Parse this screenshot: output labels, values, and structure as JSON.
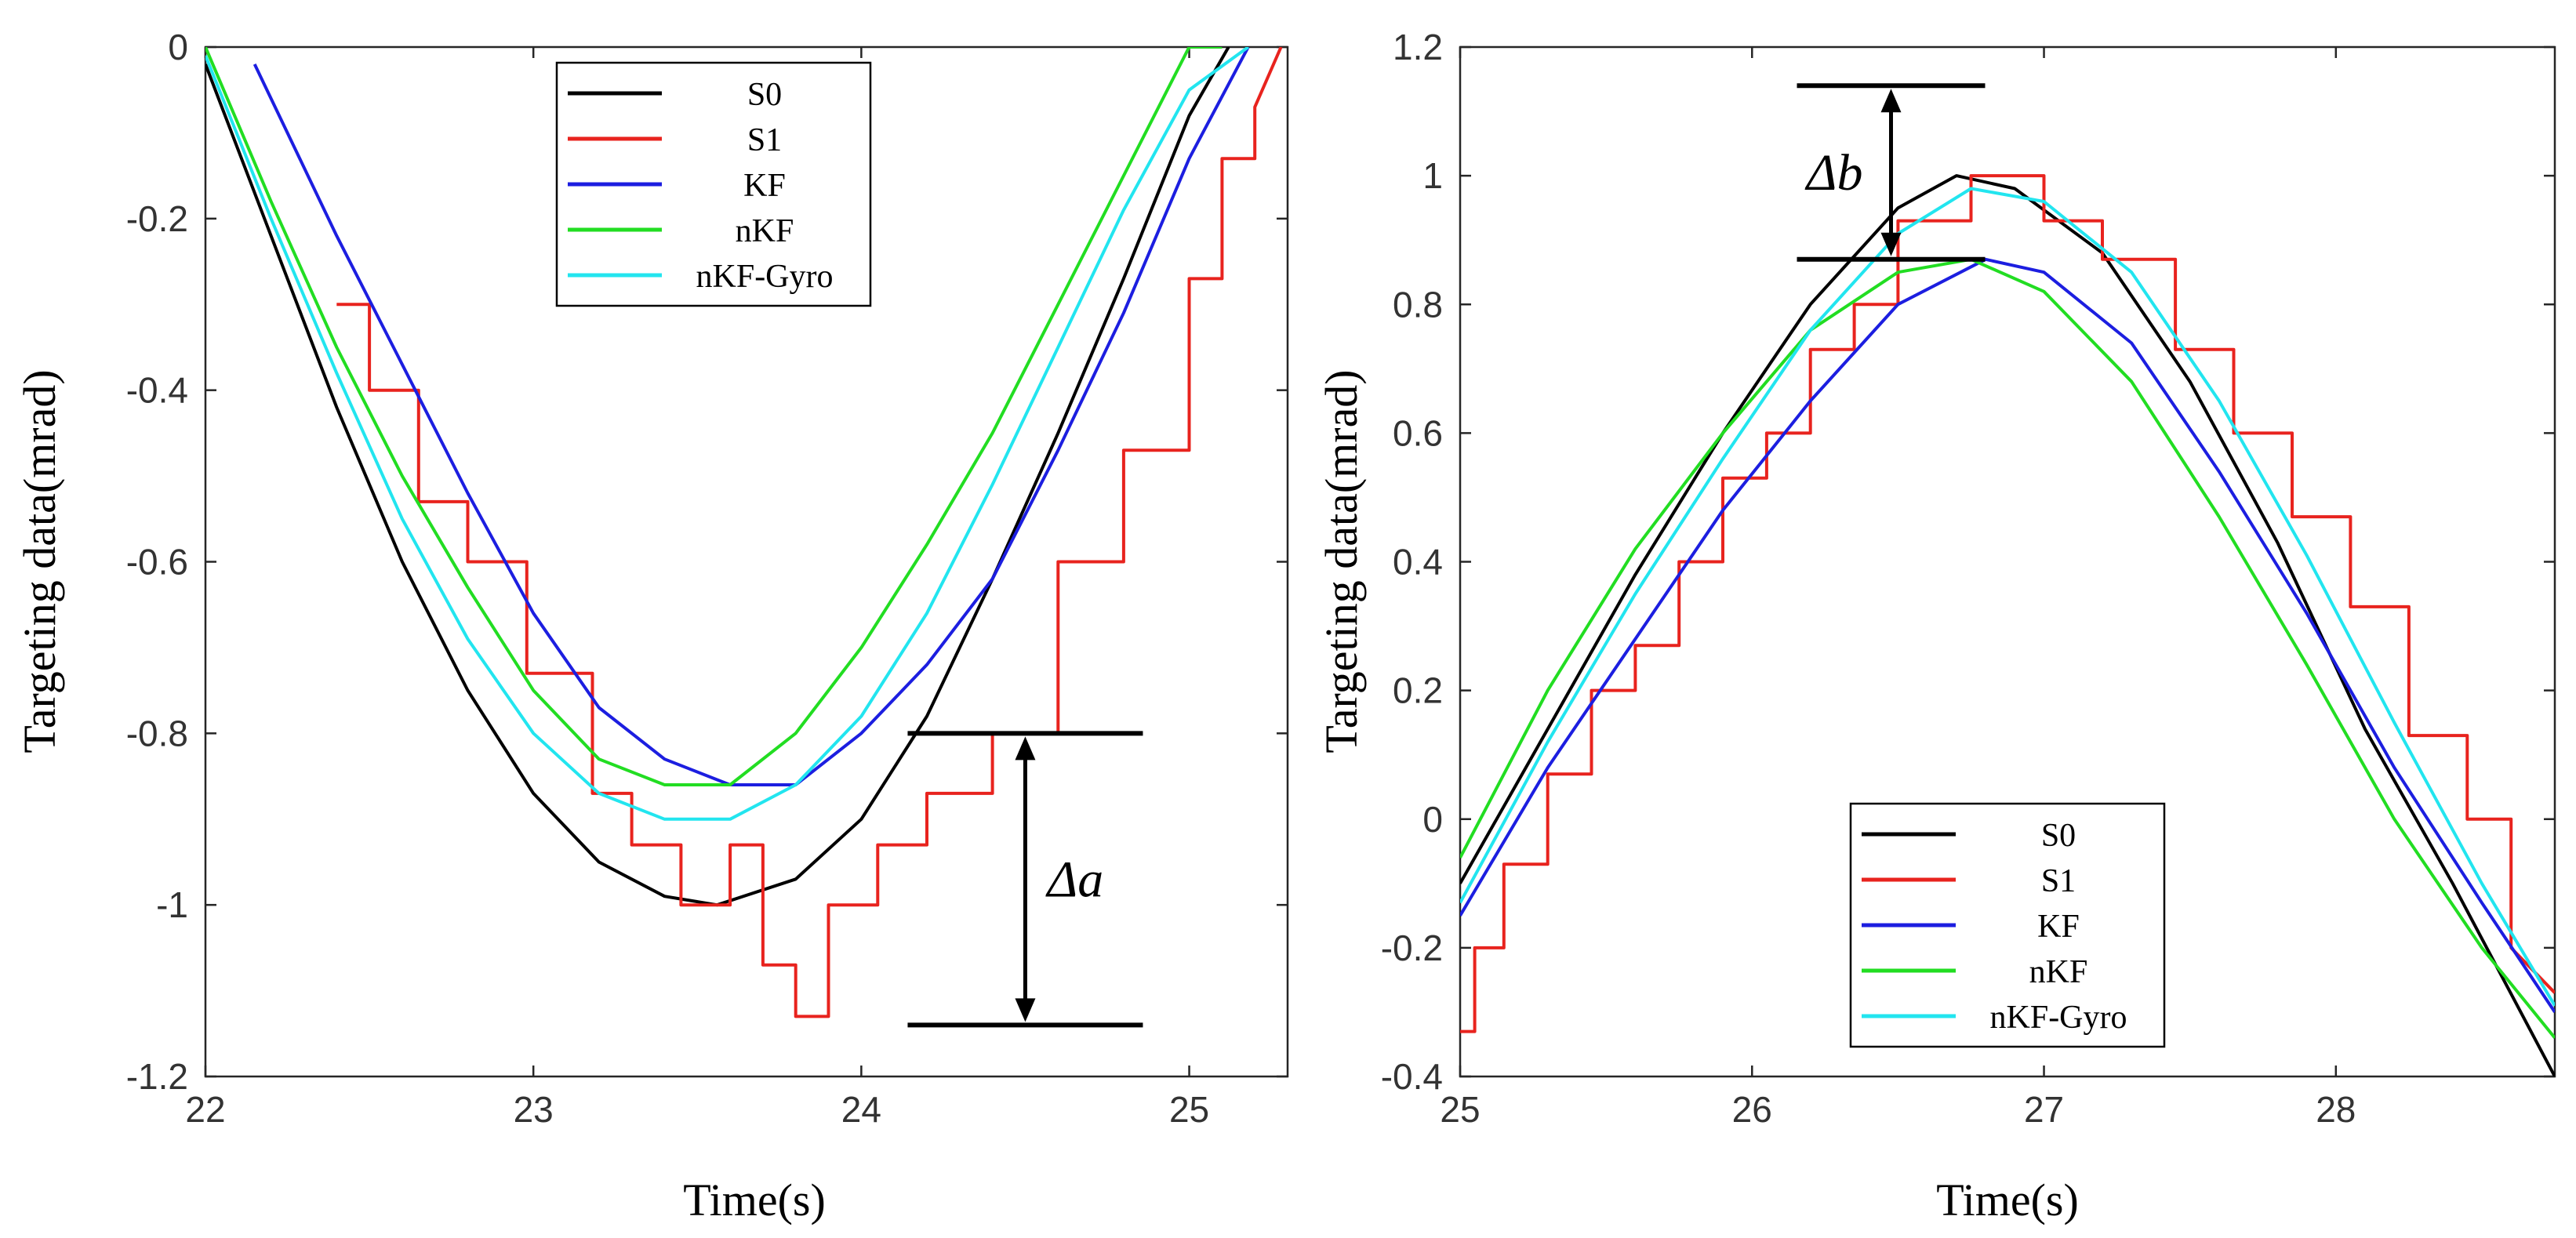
{
  "chart_data": [
    {
      "type": "line",
      "xlabel": "Time(s)",
      "ylabel": "Targeting data(mrad)",
      "xlim": [
        22,
        25.3
      ],
      "ylim": [
        -1.2,
        0
      ],
      "xticks": [
        22,
        23,
        24,
        25
      ],
      "yticks": [
        0,
        -0.2,
        -0.4,
        -0.6,
        -0.8,
        -1,
        -1.2
      ],
      "xtick_labels": [
        "22",
        "23",
        "24",
        "25"
      ],
      "ytick_labels": [
        "0",
        "-0.2",
        "-0.4",
        "-0.6",
        "-0.8",
        "-1",
        "-1.2"
      ],
      "legend_position": "top-center",
      "series": [
        {
          "name": "S0",
          "color": "#000000",
          "x": [
            22.0,
            22.2,
            22.4,
            22.6,
            22.8,
            23.0,
            23.2,
            23.4,
            23.56,
            23.8,
            24.0,
            24.2,
            24.4,
            24.6,
            24.8,
            25.0,
            25.12
          ],
          "values": [
            -0.02,
            -0.22,
            -0.42,
            -0.6,
            -0.75,
            -0.87,
            -0.95,
            -0.99,
            -1.0,
            -0.97,
            -0.9,
            -0.78,
            -0.62,
            -0.45,
            -0.27,
            -0.08,
            0.0
          ]
        },
        {
          "name": "S1",
          "color": "#e8231e",
          "x": [
            22.4,
            22.5,
            22.5,
            22.65,
            22.65,
            22.8,
            22.8,
            22.98,
            22.98,
            23.18,
            23.18,
            23.3,
            23.3,
            23.45,
            23.45,
            23.6,
            23.6,
            23.7,
            23.7,
            23.8,
            23.8,
            23.9,
            23.9,
            24.05,
            24.05,
            24.2,
            24.2,
            24.4,
            24.4,
            24.6,
            24.6,
            24.8,
            24.8,
            25.0,
            25.0,
            25.1,
            25.1,
            25.2,
            25.2,
            25.28
          ],
          "values": [
            -0.3,
            -0.3,
            -0.4,
            -0.4,
            -0.53,
            -0.53,
            -0.6,
            -0.6,
            -0.73,
            -0.73,
            -0.87,
            -0.87,
            -0.93,
            -0.93,
            -1.0,
            -1.0,
            -0.93,
            -0.93,
            -1.07,
            -1.07,
            -1.13,
            -1.13,
            -1.0,
            -1.0,
            -0.93,
            -0.93,
            -0.87,
            -0.87,
            -0.8,
            -0.8,
            -0.6,
            -0.6,
            -0.47,
            -0.47,
            -0.27,
            -0.27,
            -0.13,
            -0.13,
            -0.07,
            0.0
          ]
        },
        {
          "name": "KF",
          "color": "#1c1ee0",
          "x": [
            22.15,
            22.4,
            22.6,
            22.8,
            23.0,
            23.2,
            23.4,
            23.6,
            23.8,
            24.0,
            24.2,
            24.4,
            24.6,
            24.8,
            25.0,
            25.18
          ],
          "values": [
            -0.02,
            -0.22,
            -0.37,
            -0.52,
            -0.66,
            -0.77,
            -0.83,
            -0.86,
            -0.86,
            -0.8,
            -0.72,
            -0.62,
            -0.47,
            -0.31,
            -0.13,
            0.0
          ]
        },
        {
          "name": "nKF",
          "color": "#22dd22",
          "x": [
            22.0,
            22.2,
            22.4,
            22.6,
            22.8,
            23.0,
            23.2,
            23.4,
            23.6,
            23.8,
            24.0,
            24.2,
            24.4,
            24.6,
            24.8,
            25.0,
            25.1
          ],
          "values": [
            0.0,
            -0.18,
            -0.35,
            -0.5,
            -0.63,
            -0.75,
            -0.83,
            -0.86,
            -0.86,
            -0.8,
            -0.7,
            -0.58,
            -0.45,
            -0.3,
            -0.15,
            0.0,
            0.0
          ]
        },
        {
          "name": "nKF-Gyro",
          "color": "#22e5ef",
          "x": [
            22.0,
            22.2,
            22.4,
            22.6,
            22.8,
            23.0,
            23.2,
            23.4,
            23.6,
            23.8,
            24.0,
            24.2,
            24.4,
            24.6,
            24.8,
            25.0,
            25.18
          ],
          "values": [
            -0.01,
            -0.2,
            -0.38,
            -0.55,
            -0.69,
            -0.8,
            -0.87,
            -0.9,
            -0.9,
            -0.86,
            -0.78,
            -0.66,
            -0.51,
            -0.35,
            -0.19,
            -0.05,
            0.0
          ]
        }
      ],
      "annotation": {
        "text": "Δa",
        "span": [
          -0.8,
          -1.14
        ],
        "at_x": 24.5
      }
    },
    {
      "type": "line",
      "xlabel": "Time(s)",
      "ylabel": "Targeting data(mrad)",
      "xlim": [
        25,
        28.75
      ],
      "ylim": [
        -0.4,
        1.2
      ],
      "xticks": [
        25,
        26,
        27,
        28
      ],
      "yticks": [
        1.2,
        1,
        0.8,
        0.6,
        0.4,
        0.2,
        0,
        -0.2,
        -0.4
      ],
      "xtick_labels": [
        "25",
        "26",
        "27",
        "28"
      ],
      "ytick_labels": [
        "1.2",
        "1",
        "0.8",
        "0.6",
        "0.4",
        "0.2",
        "0",
        "-0.2",
        "-0.4"
      ],
      "legend_position": "bottom-center",
      "series": [
        {
          "name": "S0",
          "color": "#000000",
          "x": [
            25.0,
            25.3,
            25.6,
            25.9,
            26.2,
            26.5,
            26.7,
            26.9,
            27.2,
            27.5,
            27.8,
            28.1,
            28.4,
            28.75
          ],
          "values": [
            -0.1,
            0.14,
            0.38,
            0.6,
            0.8,
            0.95,
            1.0,
            0.98,
            0.88,
            0.68,
            0.43,
            0.14,
            -0.1,
            -0.4
          ]
        },
        {
          "name": "S1",
          "color": "#e8231e",
          "x": [
            25.0,
            25.05,
            25.05,
            25.15,
            25.15,
            25.3,
            25.3,
            25.45,
            25.45,
            25.6,
            25.6,
            25.75,
            25.75,
            25.9,
            25.9,
            26.05,
            26.05,
            26.2,
            26.2,
            26.35,
            26.35,
            26.5,
            26.5,
            26.75,
            26.75,
            27.0,
            27.0,
            27.2,
            27.2,
            27.45,
            27.45,
            27.65,
            27.65,
            27.85,
            27.85,
            28.05,
            28.05,
            28.25,
            28.25,
            28.45,
            28.45,
            28.6,
            28.6,
            28.75
          ],
          "values": [
            -0.33,
            -0.33,
            -0.2,
            -0.2,
            -0.07,
            -0.07,
            0.07,
            0.07,
            0.2,
            0.2,
            0.27,
            0.27,
            0.4,
            0.4,
            0.53,
            0.53,
            0.6,
            0.6,
            0.73,
            0.73,
            0.8,
            0.8,
            0.93,
            0.93,
            1.0,
            1.0,
            0.93,
            0.93,
            0.87,
            0.87,
            0.73,
            0.73,
            0.6,
            0.6,
            0.47,
            0.47,
            0.33,
            0.33,
            0.13,
            0.13,
            0.0,
            0.0,
            -0.2,
            -0.27
          ]
        },
        {
          "name": "KF",
          "color": "#1c1ee0",
          "x": [
            25.0,
            25.3,
            25.6,
            25.9,
            26.2,
            26.5,
            26.8,
            27.0,
            27.3,
            27.6,
            27.9,
            28.2,
            28.5,
            28.75
          ],
          "values": [
            -0.15,
            0.08,
            0.28,
            0.48,
            0.65,
            0.8,
            0.87,
            0.85,
            0.74,
            0.54,
            0.32,
            0.08,
            -0.13,
            -0.3
          ]
        },
        {
          "name": "nKF",
          "color": "#22dd22",
          "x": [
            25.0,
            25.3,
            25.6,
            25.9,
            26.2,
            26.5,
            26.75,
            27.0,
            27.3,
            27.6,
            27.9,
            28.2,
            28.5,
            28.75
          ],
          "values": [
            -0.06,
            0.2,
            0.42,
            0.6,
            0.76,
            0.85,
            0.87,
            0.82,
            0.68,
            0.47,
            0.24,
            0.0,
            -0.2,
            -0.34
          ]
        },
        {
          "name": "nKF-Gyro",
          "color": "#22e5ef",
          "x": [
            25.0,
            25.3,
            25.6,
            25.9,
            26.2,
            26.5,
            26.75,
            27.0,
            27.3,
            27.6,
            27.9,
            28.2,
            28.5,
            28.75
          ],
          "values": [
            -0.13,
            0.12,
            0.35,
            0.56,
            0.76,
            0.91,
            0.98,
            0.96,
            0.85,
            0.65,
            0.41,
            0.15,
            -0.1,
            -0.29
          ]
        }
      ],
      "annotation": {
        "text": "Δb",
        "span": [
          1.14,
          0.87
        ],
        "at_x": 26.1
      }
    }
  ]
}
